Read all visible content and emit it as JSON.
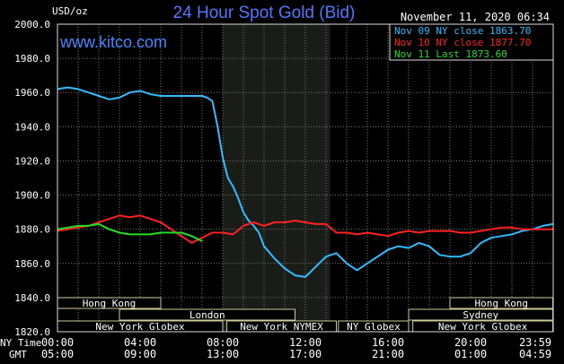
{
  "chart_data": {
    "type": "line",
    "title": "24 Hour Spot Gold (Bid)",
    "y_unit_label": "USD/oz",
    "date_label": "November 11, 2020 06:34",
    "website": "www.kitco.com",
    "ylim": [
      1820,
      2000
    ],
    "y_ticks": [
      "2000.0",
      "1980.0",
      "1960.0",
      "1940.0",
      "1920.0",
      "1900.0",
      "1880.0",
      "1860.0",
      "1840.0",
      "1820.0"
    ],
    "x_range_hours": [
      0,
      24
    ],
    "x_ticks_ny": [
      "00:00",
      "04:00",
      "08:00",
      "12:00",
      "16:00",
      "20:00",
      "23:59"
    ],
    "x_ticks_gmt": [
      "05:00",
      "09:00",
      "13:00",
      "17:00",
      "21:00",
      "01:00",
      "04:59"
    ],
    "x_row_label_ny": "NY Time",
    "x_row_label_gmt": "GMT",
    "legend_position": "top-right",
    "shaded_period_hours": [
      8,
      13.2
    ],
    "series": [
      {
        "name": "Nov 09 NY close 1863.70",
        "color": "#33bbff",
        "x": [
          0,
          0.5,
          1,
          1.5,
          2,
          2.5,
          3,
          3.5,
          4,
          4.5,
          5,
          5.5,
          6,
          6.5,
          7,
          7.25,
          7.5,
          7.75,
          8,
          8.25,
          8.5,
          8.75,
          9,
          9.25,
          9.5,
          9.75,
          10,
          10.5,
          11,
          11.5,
          12,
          12.5,
          13,
          13.5,
          14,
          14.5,
          15,
          15.5,
          16,
          16.5,
          17,
          17.5,
          18,
          18.5,
          19,
          19.5,
          20,
          20.5,
          21,
          21.5,
          22,
          22.5,
          23,
          23.5,
          23.98
        ],
        "y": [
          1962,
          1963,
          1962,
          1960,
          1958,
          1956,
          1957,
          1960,
          1961,
          1959,
          1958,
          1958,
          1958,
          1958,
          1958,
          1957,
          1955,
          1940,
          1922,
          1910,
          1905,
          1898,
          1890,
          1885,
          1882,
          1878,
          1870,
          1863,
          1857,
          1853,
          1852,
          1858,
          1864,
          1866,
          1860,
          1856,
          1860,
          1864,
          1868,
          1870,
          1869,
          1872,
          1870,
          1865,
          1864,
          1864,
          1866,
          1872,
          1875,
          1876,
          1877,
          1879,
          1880,
          1882,
          1883
        ]
      },
      {
        "name": "Nov 10 NY close 1877.70",
        "color": "#ff2020",
        "x": [
          0,
          0.5,
          1,
          1.5,
          2,
          2.5,
          3,
          3.5,
          4,
          4.5,
          5,
          5.5,
          6,
          6.5,
          7,
          7.5,
          8,
          8.5,
          9,
          9.5,
          10,
          10.5,
          11,
          11.5,
          12,
          12.5,
          13,
          13.5,
          14,
          14.5,
          15,
          15.5,
          16,
          16.5,
          17,
          17.5,
          18,
          18.5,
          19,
          19.5,
          20,
          20.5,
          21,
          21.5,
          22,
          22.5,
          23,
          23.5,
          23.98
        ],
        "y": [
          1879,
          1880,
          1881,
          1882,
          1884,
          1886,
          1888,
          1887,
          1888,
          1886,
          1884,
          1880,
          1876,
          1872,
          1875,
          1878,
          1878,
          1877,
          1882,
          1884,
          1882,
          1884,
          1884,
          1885,
          1884,
          1883,
          1883,
          1878,
          1878,
          1877,
          1878,
          1877,
          1876,
          1878,
          1879,
          1878,
          1879,
          1879,
          1879,
          1878,
          1878,
          1879,
          1880,
          1881,
          1881,
          1880,
          1880,
          1880,
          1880
        ]
      },
      {
        "name": "Nov 11 Last 1873.60",
        "color": "#22dd22",
        "x": [
          0,
          0.5,
          1,
          1.5,
          2,
          2.5,
          3,
          3.5,
          4,
          4.5,
          5,
          5.5,
          6,
          6.5,
          7
        ],
        "y": [
          1880,
          1881,
          1882,
          1882,
          1883,
          1880,
          1878,
          1877,
          1877,
          1877,
          1878,
          1878,
          1878,
          1876,
          1873
        ]
      }
    ],
    "sessions": [
      {
        "name": "Hong Kong",
        "start": 0,
        "end": 5
      },
      {
        "name": "London",
        "start": 3,
        "end": 11.5
      },
      {
        "name": "New York Globex",
        "start": 0,
        "end": 8
      },
      {
        "name": "New York NYMEX",
        "start": 8.2,
        "end": 13.5
      },
      {
        "name": "NY Globex",
        "start": 13.6,
        "end": 17
      },
      {
        "name": "Hong Kong",
        "start": 19,
        "end": 23.98
      },
      {
        "name": "Sydney",
        "start": 17,
        "end": 23.98
      },
      {
        "name": "New York Globex",
        "start": 17.2,
        "end": 23.98
      }
    ]
  }
}
